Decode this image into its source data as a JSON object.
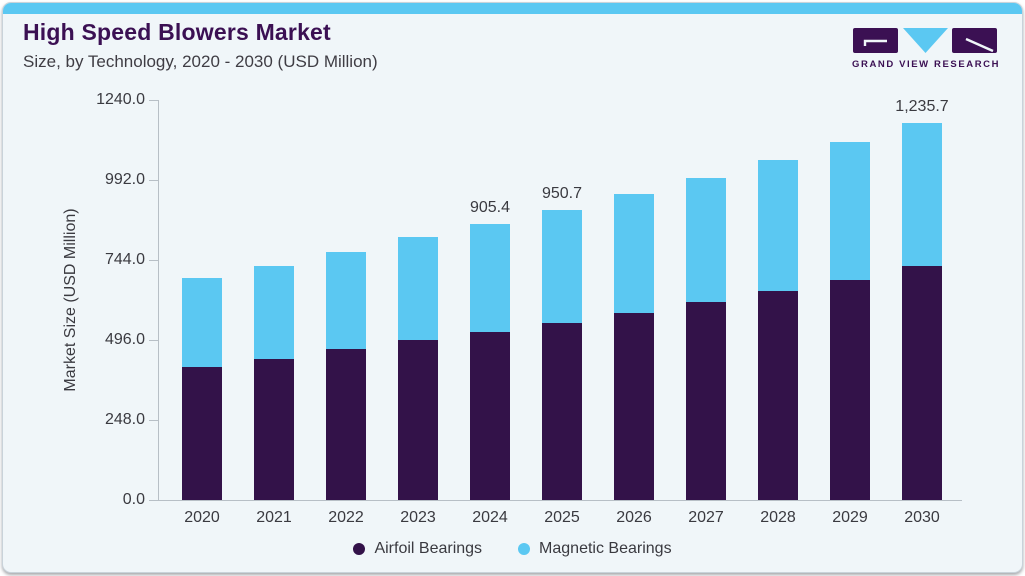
{
  "header": {
    "title": "High Speed Blowers Market",
    "subtitle": "Size, by Technology, 2020 - 2030 (USD Million)",
    "logo": {
      "text": "GRAND VIEW RESEARCH"
    }
  },
  "colors": {
    "accent_blue": "#5bc8f2",
    "bar_purple": "#331249",
    "brand_purple": "#3b1053",
    "text_dark": "#3a3a40",
    "axis_line": "#b7bfc6",
    "card_bg": "#f0f6f9",
    "card_border": "#c9d3da"
  },
  "chart_data": {
    "type": "bar",
    "stacked": true,
    "title": "High Speed Blowers Market Size, by Technology, 2020 - 2030 (USD Million)",
    "categories": [
      "2020",
      "2021",
      "2022",
      "2023",
      "2024",
      "2025",
      "2026",
      "2027",
      "2028",
      "2029",
      "2030"
    ],
    "series": [
      {
        "name": "Airfoil Bearings",
        "color": "#331249",
        "values": [
          437.0,
          463.0,
          493.5,
          523.0,
          551.5,
          580.0,
          612.5,
          648.5,
          684.5,
          721.5,
          767.5
        ]
      },
      {
        "name": "Magnetic Bearings",
        "color": "#5bc8f2",
        "values": [
          291.5,
          302.0,
          319.0,
          339.5,
          353.9,
          370.7,
          389.5,
          407.0,
          429.0,
          449.5,
          468.2
        ]
      }
    ],
    "totals": [
      728.5,
      765.0,
      812.5,
      862.5,
      905.4,
      950.7,
      1002.0,
      1055.5,
      1113.5,
      1171.0,
      1235.7
    ],
    "bar_labels": {
      "2024": "905.4",
      "2025": "950.7",
      "2030": "1,235.7"
    },
    "xlabel": "",
    "ylabel": "Market Size (USD Million)",
    "yticks": [
      0,
      248,
      496,
      744,
      992,
      1240
    ],
    "ytick_labels": [
      "0.0",
      "248.0",
      "496.0",
      "744.0",
      "992.0",
      "1240.0"
    ],
    "ylim": [
      0,
      1240
    ],
    "grid": false,
    "legend_position": "bottom"
  }
}
